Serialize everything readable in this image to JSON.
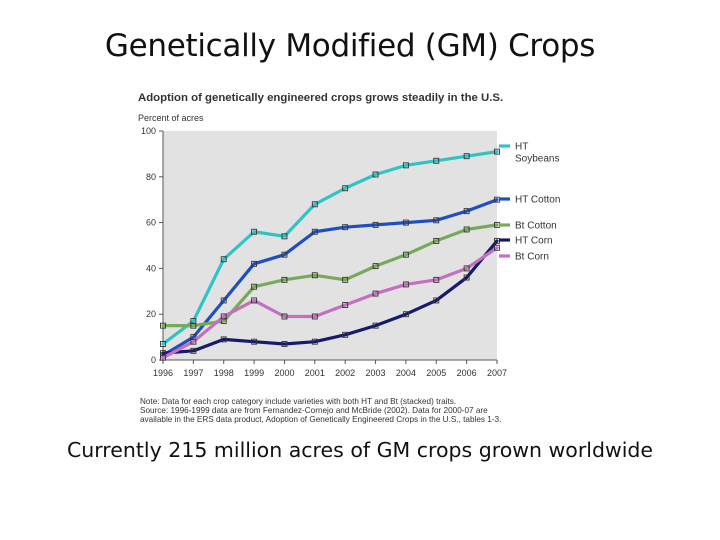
{
  "slide": {
    "title": "Genetically Modified (GM) Crops",
    "caption": "Currently 215 million acres of GM crops grown worldwide"
  },
  "colors": {
    "ht_soybeans": "#2ec4c4",
    "ht_cotton": "#1f4fbf",
    "bt_cotton": "#78a95a",
    "ht_corn": "#161a6b",
    "bt_corn": "#c46fbf",
    "plot_background": "#e2e2e2"
  },
  "chart_data": {
    "type": "line",
    "title": "Adoption of genetically engineered crops grows steadily in the U.S.",
    "ylabel": "Percent of acres",
    "xlabel": "",
    "ylim": [
      0,
      100
    ],
    "yticks": [
      0,
      20,
      40,
      60,
      80,
      100
    ],
    "grid": false,
    "legend": "right",
    "x": [
      "1996",
      "1997",
      "1998",
      "1999",
      "2000",
      "2001",
      "2002",
      "2003",
      "2004",
      "2005",
      "2006",
      "2007"
    ],
    "series": [
      {
        "name_lines": [
          "HT",
          "Soybeans"
        ],
        "color_key": "ht_soybeans",
        "values": [
          7,
          17,
          44,
          56,
          54,
          68,
          75,
          81,
          85,
          87,
          89,
          91
        ]
      },
      {
        "name_lines": [
          "HT Cotton"
        ],
        "color_key": "ht_cotton",
        "values": [
          2,
          10,
          26,
          42,
          46,
          56,
          58,
          59,
          60,
          61,
          65,
          70
        ]
      },
      {
        "name_lines": [
          "Bt Cotton"
        ],
        "color_key": "bt_cotton",
        "values": [
          15,
          15,
          17,
          32,
          35,
          37,
          35,
          41,
          46,
          52,
          57,
          59
        ]
      },
      {
        "name_lines": [
          "HT Corn"
        ],
        "color_key": "ht_corn",
        "values": [
          3,
          4,
          9,
          8,
          7,
          8,
          11,
          15,
          20,
          26,
          36,
          52
        ]
      },
      {
        "name_lines": [
          "Bt Corn"
        ],
        "color_key": "bt_corn",
        "values": [
          1,
          8,
          19,
          26,
          19,
          19,
          24,
          29,
          33,
          35,
          40,
          49
        ]
      }
    ],
    "notes": [
      "Note: Data for each crop category include varieties with both HT and Bt (stacked) traits.",
      "Source: 1996-1999 data are from Fernandez-Cornejo and McBride (2002). Data for 2000-07 are",
      "available in the ERS data product, Adoption of Genetically Engineered Crops in the U.S., tables 1-3."
    ]
  }
}
